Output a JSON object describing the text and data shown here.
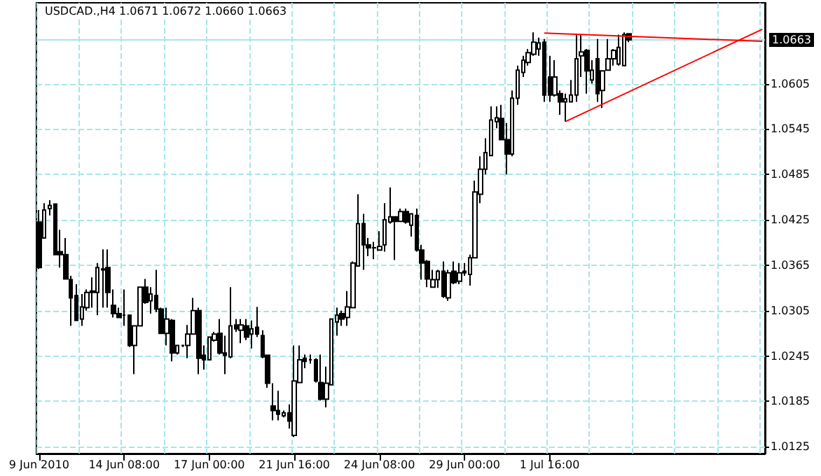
{
  "chart_data": {
    "type": "candlestick",
    "title": "USDCAD.,H4 1.0671 1.0672 1.0660 1.0663",
    "categories": [
      "9 Jun 2010",
      null,
      null,
      null,
      null,
      null,
      null,
      null,
      null,
      null,
      null,
      null,
      null,
      null,
      null,
      null,
      "14 Jun 08:00",
      null,
      null,
      null,
      null,
      null,
      null,
      null,
      null,
      null,
      null,
      null,
      null,
      null,
      null,
      null,
      "17 Jun 00:00",
      null,
      null,
      null,
      null,
      null,
      null,
      null,
      null,
      null,
      null,
      null,
      null,
      null,
      null,
      null,
      "21 Jun 16:00",
      null,
      null,
      null,
      null,
      null,
      null,
      null,
      null,
      null,
      null,
      null,
      null,
      null,
      null,
      null,
      "24 Jun 08:00",
      null,
      null,
      null,
      null,
      null,
      null,
      null,
      null,
      null,
      null,
      null,
      null,
      null,
      null,
      null,
      "29 Jun 00:00",
      null,
      null,
      null,
      null,
      null,
      null,
      null,
      null,
      null,
      null,
      null,
      null,
      null,
      null,
      null,
      "1 Jul 16:00",
      null,
      null,
      null,
      null,
      null,
      null,
      null,
      null,
      null,
      null,
      null,
      null,
      null,
      null,
      null,
      null,
      null,
      null,
      null,
      null,
      null,
      null,
      null,
      null,
      null,
      null,
      null,
      null,
      null,
      null,
      null,
      null,
      null,
      null,
      null,
      null,
      null,
      null,
      null,
      null
    ],
    "ohlc": [
      [
        1.0422,
        1.0438,
        1.036,
        1.0362
      ],
      [
        1.0401,
        1.0447,
        1.0401,
        1.0438
      ],
      [
        1.044,
        1.0451,
        1.0431,
        1.0444
      ],
      [
        1.0446,
        1.0446,
        1.0379,
        1.0379
      ],
      [
        1.0383,
        1.0412,
        1.0362,
        1.0379
      ],
      [
        1.0379,
        1.0401,
        1.0346,
        1.0347
      ],
      [
        1.0346,
        1.0351,
        1.0285,
        1.0322
      ],
      [
        1.0325,
        1.034,
        1.0292,
        1.0292
      ],
      [
        1.0294,
        1.0327,
        1.0285,
        1.031
      ],
      [
        1.0309,
        1.0333,
        1.0305,
        1.0329
      ],
      [
        1.0331,
        1.0349,
        1.0309,
        1.0329
      ],
      [
        1.0329,
        1.0368,
        1.0299,
        1.0362
      ],
      [
        1.0359,
        1.0386,
        1.0309,
        1.036
      ],
      [
        1.0362,
        1.0386,
        1.0309,
        1.0329
      ],
      [
        1.0312,
        1.0333,
        1.0296,
        1.0301
      ],
      [
        1.0301,
        1.0309,
        1.0296,
        1.0296
      ],
      [
        1.0299,
        1.0333,
        1.0285,
        1.0299
      ],
      [
        1.0299,
        1.0299,
        1.0257,
        1.0259
      ],
      [
        1.0259,
        1.0285,
        1.0221,
        1.0285
      ],
      [
        1.0285,
        1.0336,
        1.0285,
        1.0336
      ],
      [
        1.0336,
        1.0347,
        1.0314,
        1.0316
      ],
      [
        1.0318,
        1.0336,
        1.0301,
        1.0327
      ],
      [
        1.0325,
        1.0359,
        1.0303,
        1.0307
      ],
      [
        1.0307,
        1.0309,
        1.0274,
        1.0275
      ],
      [
        1.0275,
        1.0309,
        1.0259,
        1.0294
      ],
      [
        1.0292,
        1.0294,
        1.0238,
        1.0249
      ],
      [
        1.0249,
        1.026,
        1.0247,
        1.0259
      ],
      [
        1.0259,
        1.026,
        1.0257,
        1.0259
      ],
      [
        1.0259,
        1.0286,
        1.0242,
        1.0274
      ],
      [
        1.0274,
        1.0322,
        1.0274,
        1.0305
      ],
      [
        1.0305,
        1.0309,
        1.0221,
        1.0242
      ],
      [
        1.0246,
        1.0259,
        1.0227,
        1.024
      ],
      [
        1.024,
        1.027,
        1.024,
        1.027
      ],
      [
        1.0266,
        1.0277,
        1.0264,
        1.0274
      ],
      [
        1.0275,
        1.0294,
        1.0247,
        1.0249
      ],
      [
        1.0249,
        1.0272,
        1.0221,
        1.0246
      ],
      [
        1.0244,
        1.0336,
        1.0242,
        1.0285
      ],
      [
        1.0286,
        1.0294,
        1.0277,
        1.0281
      ],
      [
        1.0279,
        1.0294,
        1.0262,
        1.0286
      ],
      [
        1.0285,
        1.0294,
        1.0266,
        1.027
      ],
      [
        1.0274,
        1.0292,
        1.0255,
        1.0281
      ],
      [
        1.0283,
        1.031,
        1.027,
        1.0274
      ],
      [
        1.0272,
        1.0279,
        1.0242,
        1.0244
      ],
      [
        1.0246,
        1.0247,
        1.0203,
        1.0209
      ],
      [
        1.0179,
        1.0209,
        1.016,
        1.0173
      ],
      [
        1.0173,
        1.0199,
        1.016,
        1.0168
      ],
      [
        1.0166,
        1.0173,
        1.0164,
        1.017
      ],
      [
        1.017,
        1.0181,
        1.0149,
        1.0159
      ],
      [
        1.014,
        1.0259,
        1.0138,
        1.0212
      ],
      [
        1.021,
        1.0259,
        1.021,
        1.024
      ],
      [
        1.0242,
        1.0247,
        1.0229,
        1.0238
      ],
      [
        1.024,
        1.0247,
        1.0235,
        1.024
      ],
      [
        1.024,
        1.0242,
        1.021,
        1.0212
      ],
      [
        1.021,
        1.0247,
        1.0186,
        1.0188
      ],
      [
        1.0188,
        1.0231,
        1.0177,
        1.0209
      ],
      [
        1.0207,
        1.0294,
        1.0207,
        1.0294
      ],
      [
        1.029,
        1.0309,
        1.0272,
        1.0299
      ],
      [
        1.0301,
        1.0305,
        1.0285,
        1.0294
      ],
      [
        1.0296,
        1.0331,
        1.0285,
        1.031
      ],
      [
        1.0309,
        1.037,
        1.0309,
        1.0368
      ],
      [
        1.0364,
        1.0459,
        1.0364,
        1.042
      ],
      [
        1.042,
        1.0433,
        1.0359,
        1.0392
      ],
      [
        1.0392,
        1.0401,
        1.0377,
        1.0388
      ],
      [
        1.0388,
        1.0396,
        1.0373,
        1.0388
      ],
      [
        1.0385,
        1.041,
        1.0385,
        1.039
      ],
      [
        1.0392,
        1.0447,
        1.0383,
        1.0425
      ],
      [
        1.0422,
        1.0468,
        1.042,
        1.0429
      ],
      [
        1.0429,
        1.0429,
        1.0372,
        1.0423
      ],
      [
        1.0423,
        1.044,
        1.0422,
        1.0436
      ],
      [
        1.0436,
        1.044,
        1.042,
        1.0422
      ],
      [
        1.0418,
        1.0434,
        1.0403,
        1.0433
      ],
      [
        1.0431,
        1.044,
        1.0383,
        1.0385
      ],
      [
        1.0385,
        1.0392,
        1.0346,
        1.0368
      ],
      [
        1.037,
        1.0372,
        1.0336,
        1.0347
      ],
      [
        1.0336,
        1.0359,
        1.0335,
        1.0346
      ],
      [
        1.0346,
        1.0359,
        1.0335,
        1.0357
      ],
      [
        1.0357,
        1.037,
        1.0322,
        1.0324
      ],
      [
        1.0322,
        1.0359,
        1.0318,
        1.0355
      ],
      [
        1.0357,
        1.037,
        1.034,
        1.0342
      ],
      [
        1.0344,
        1.0368,
        1.034,
        1.0355
      ],
      [
        1.0357,
        1.0368,
        1.0351,
        1.0355
      ],
      [
        1.0353,
        1.0379,
        1.0338,
        1.0375
      ],
      [
        1.0375,
        1.0477,
        1.0375,
        1.0462
      ],
      [
        1.0459,
        1.0509,
        1.0447,
        1.0492
      ],
      [
        1.0492,
        1.0533,
        1.0485,
        1.0514
      ],
      [
        1.051,
        1.0575,
        1.0509,
        1.0557
      ],
      [
        1.0555,
        1.0575,
        1.0546,
        1.056
      ],
      [
        1.0559,
        1.0577,
        1.0531,
        1.0531
      ],
      [
        1.0531,
        1.0553,
        1.0485,
        1.0512
      ],
      [
        1.0512,
        1.0596,
        1.0509,
        1.0586
      ],
      [
        1.0586,
        1.0629,
        1.0577,
        1.0623
      ],
      [
        1.062,
        1.0642,
        1.0614,
        1.0636
      ],
      [
        1.0633,
        1.0651,
        1.0629,
        1.0646
      ],
      [
        1.0644,
        1.0673,
        1.0642,
        1.066
      ],
      [
        1.0651,
        1.0666,
        1.0642,
        1.0659
      ],
      [
        1.066,
        1.0664,
        1.0581,
        1.059
      ],
      [
        1.0614,
        1.0642,
        1.0581,
        1.059
      ],
      [
        1.059,
        1.0636,
        1.0588,
        1.0614
      ],
      [
        1.0592,
        1.0596,
        1.0564,
        1.0581
      ],
      [
        1.0581,
        1.0592,
        1.0555,
        1.0585
      ],
      [
        1.0581,
        1.061,
        1.0581,
        1.059
      ],
      [
        1.059,
        1.067,
        1.0581,
        1.0638
      ],
      [
        1.0642,
        1.067,
        1.0614,
        1.0647
      ],
      [
        1.0649,
        1.0651,
        1.0592,
        1.0622
      ],
      [
        1.061,
        1.0636,
        1.0605,
        1.0623
      ],
      [
        1.0638,
        1.0664,
        1.0581,
        1.0592
      ],
      [
        1.0596,
        1.0623,
        1.0573,
        1.0622
      ],
      [
        1.0623,
        1.0664,
        1.0623,
        1.0638
      ],
      [
        1.0638,
        1.0651,
        1.0629,
        1.0649
      ],
      [
        1.0631,
        1.067,
        1.0629,
        1.0653
      ],
      [
        1.0629,
        1.0673,
        1.0629,
        1.067
      ],
      [
        1.0671,
        1.0672,
        1.066,
        1.0663
      ],
      null,
      null,
      null,
      null,
      null,
      null,
      null,
      null,
      null,
      null,
      null,
      null,
      null,
      null,
      null,
      null,
      null,
      null,
      null,
      null,
      null,
      null,
      null,
      null,
      null
    ],
    "series": [
      {
        "type": "line",
        "color": "#ff0000",
        "values": [
          null,
          null,
          null,
          null,
          null,
          null,
          null,
          null,
          null,
          null,
          null,
          null,
          null,
          null,
          null,
          null,
          null,
          null,
          null,
          null,
          null,
          null,
          null,
          null,
          null,
          null,
          null,
          null,
          null,
          null,
          null,
          null,
          null,
          null,
          null,
          null,
          null,
          null,
          null,
          null,
          null,
          null,
          null,
          null,
          null,
          null,
          null,
          null,
          null,
          null,
          null,
          null,
          null,
          null,
          null,
          null,
          null,
          null,
          null,
          null,
          null,
          null,
          null,
          null,
          null,
          null,
          null,
          null,
          null,
          null,
          null,
          null,
          null,
          null,
          null,
          null,
          null,
          null,
          null,
          null,
          null,
          null,
          null,
          null,
          null,
          null,
          null,
          null,
          null,
          null,
          null,
          null,
          null,
          null,
          null,
          1.0672,
          null,
          null,
          null,
          null,
          null,
          null,
          null,
          null,
          null,
          null,
          null,
          null,
          null,
          null,
          null,
          null,
          null,
          null,
          null,
          null,
          null,
          null,
          null,
          null,
          null,
          null,
          null,
          null,
          null,
          null,
          null,
          null,
          null,
          null,
          null,
          null,
          null,
          null,
          null,
          null,
          1.0661
        ]
      },
      {
        "type": "line",
        "color": "#ff0000",
        "values": [
          null,
          null,
          null,
          null,
          null,
          null,
          null,
          null,
          null,
          null,
          null,
          null,
          null,
          null,
          null,
          null,
          null,
          null,
          null,
          null,
          null,
          null,
          null,
          null,
          null,
          null,
          null,
          null,
          null,
          null,
          null,
          null,
          null,
          null,
          null,
          null,
          null,
          null,
          null,
          null,
          null,
          null,
          null,
          null,
          null,
          null,
          null,
          null,
          null,
          null,
          null,
          null,
          null,
          null,
          null,
          null,
          null,
          null,
          null,
          null,
          null,
          null,
          null,
          null,
          null,
          null,
          null,
          null,
          null,
          null,
          null,
          null,
          null,
          null,
          null,
          null,
          null,
          null,
          null,
          null,
          null,
          null,
          null,
          null,
          null,
          null,
          null,
          null,
          null,
          null,
          null,
          null,
          null,
          null,
          null,
          null,
          null,
          null,
          null,
          1.0555,
          null,
          null,
          null,
          null,
          null,
          null,
          null,
          null,
          null,
          null,
          null,
          null,
          null,
          null,
          null,
          null,
          null,
          null,
          null,
          null,
          null,
          null,
          null,
          null,
          null,
          null,
          null,
          null,
          null,
          null,
          null,
          null,
          null,
          null,
          null,
          null,
          1.0677
        ]
      }
    ],
    "ylim": [
      1.0116,
      1.0712
    ],
    "yticks": [
      1.0125,
      1.0185,
      1.0245,
      1.0305,
      1.0365,
      1.0425,
      1.0485,
      1.0545,
      1.0605
    ],
    "ref_lines": [
      {
        "axis": "y",
        "value": 1.0663,
        "label": "1.0663",
        "color": "#a8e6e6"
      }
    ],
    "grid": true
  }
}
